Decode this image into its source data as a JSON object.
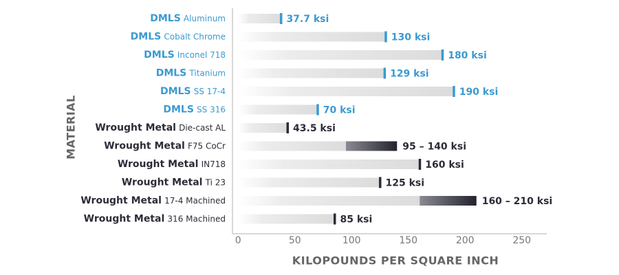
{
  "chart_data": {
    "type": "range-bar",
    "x_label": "KILOPOUNDS PER SQUARE INCH",
    "y_label": "MATERIAL",
    "category_prefixes": [
      "DMLS",
      "DMLS",
      "DMLS",
      "DMLS",
      "DMLS",
      "DMLS",
      "Wrought Metal",
      "Wrought Metal",
      "Wrought Metal",
      "Wrought Metal",
      "Wrought Metal",
      "Wrought Metal"
    ],
    "categories": [
      "Aluminum",
      "Cobalt Chrome",
      "Inconel 718",
      "Titanium",
      "SS 17-4",
      "SS 316",
      "Die-cast AL",
      "F75 CoCr",
      "IN718",
      "Ti 23",
      "17-4 Machined",
      "316 Machined"
    ],
    "low": [
      null,
      null,
      null,
      null,
      null,
      null,
      null,
      95,
      null,
      null,
      160,
      null
    ],
    "values": [
      37.7,
      130,
      180,
      129,
      190,
      70,
      43.5,
      140,
      160,
      125,
      210,
      85
    ],
    "value_labels": [
      "37.7 ksi",
      "130 ksi",
      "180 ksi",
      "129 ksi",
      "190 ksi",
      "70 ksi",
      "43.5 ksi",
      "95 – 140 ksi",
      "160 ksi",
      "125 ksi",
      "160 – 210 ksi",
      "85 ksi"
    ],
    "colors": [
      "#3a9ad1",
      "#3a9ad1",
      "#3a9ad1",
      "#3a9ad1",
      "#3a9ad1",
      "#3a9ad1",
      "#2c2c38",
      "#2c2c38",
      "#2c2c38",
      "#2c2c38",
      "#2c2c38",
      "#2c2c38"
    ],
    "xlim": [
      -5,
      272
    ],
    "xticks": [
      0,
      50,
      100,
      150,
      200,
      250
    ]
  }
}
